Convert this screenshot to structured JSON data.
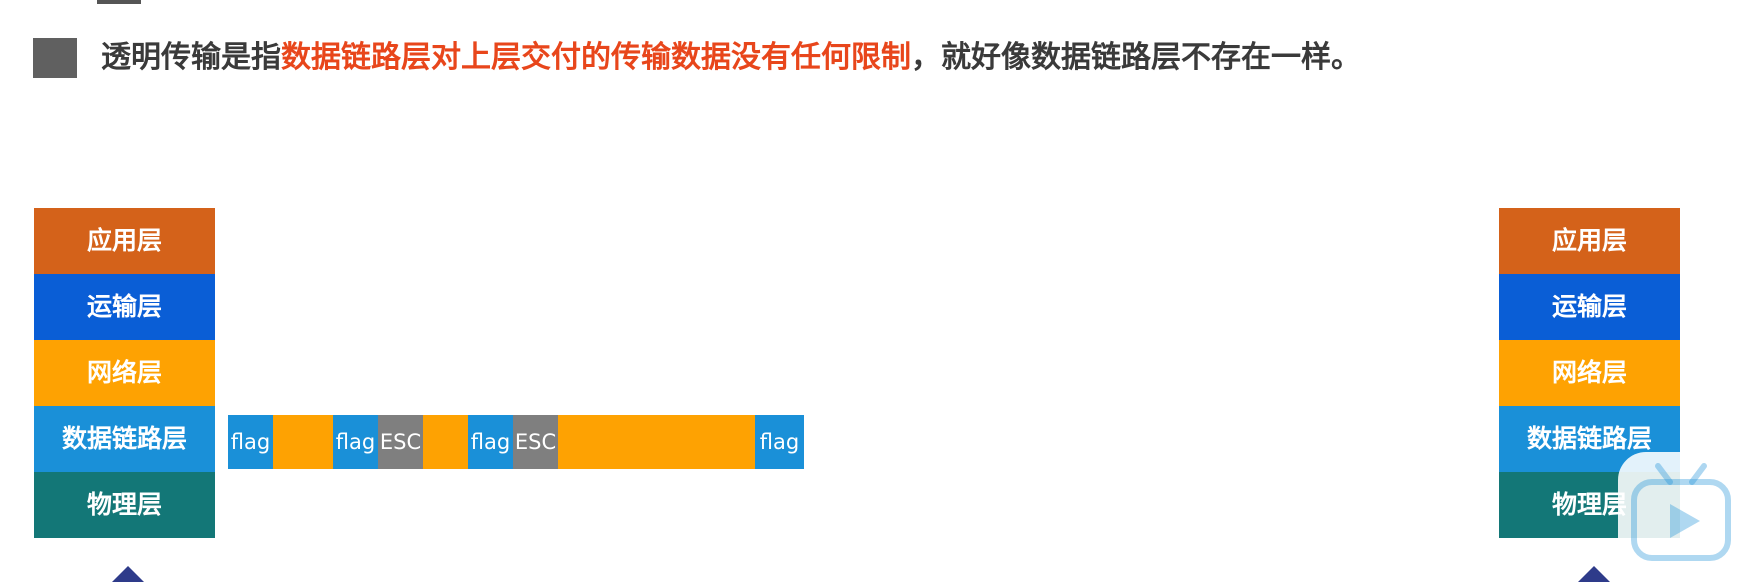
{
  "headline": {
    "prefix": "透明传输是指",
    "highlight": "数据链路层对上层交付的传输数据没有任何限制",
    "suffix": "，就好像数据链路层不存在一样。"
  },
  "layers": [
    "应用层",
    "运输层",
    "网络层",
    "数据链路层",
    "物理层"
  ],
  "frame": {
    "flag_label": "flag",
    "esc_label": "ESC"
  },
  "colors": {
    "application": "#d4621a",
    "transport": "#0a5ed6",
    "network": "#fea202",
    "datalink": "#1a90d8",
    "physical": "#137777",
    "flag": "#1a90d8",
    "esc": "#7f7f7f",
    "data": "#fea202",
    "highlight": "#e8461b"
  },
  "icons": {
    "bullet": "square-bullet-icon",
    "player": "video-player-icon",
    "arrow": "arrow-tip-icon"
  }
}
